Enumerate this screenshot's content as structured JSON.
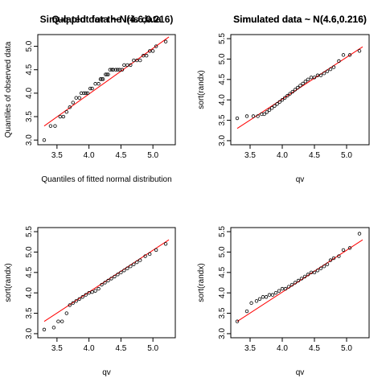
{
  "chart_data": [
    {
      "type": "scatter",
      "title": "Q-q plot for the iris data",
      "xlabel": "Quantiles of fitted normal distribution",
      "ylabel": "Quantiles of observed data",
      "xlim": [
        3.2,
        5.35
      ],
      "ylim": [
        2.9,
        5.25
      ],
      "xticks": [
        "3.5",
        "4.0",
        "4.5",
        "5.0"
      ],
      "yticks": [
        "3.0",
        "3.5",
        "4.0",
        "4.5",
        "5.0"
      ],
      "reference_line": {
        "x": [
          3.3,
          5.25
        ],
        "y": [
          3.3,
          5.2
        ],
        "color": "#ff0000"
      },
      "series": [
        {
          "x": [
            3.3,
            3.4,
            3.47,
            3.55,
            3.6,
            3.65,
            3.7,
            3.75,
            3.8,
            3.85,
            3.88,
            3.92,
            3.95,
            3.98,
            4.02,
            4.05,
            4.1,
            4.15,
            4.18,
            4.2,
            4.22,
            4.26,
            4.28,
            4.3,
            4.33,
            4.36,
            4.38,
            4.42,
            4.45,
            4.48,
            4.52,
            4.55,
            4.6,
            4.65,
            4.7,
            4.75,
            4.8,
            4.85,
            4.9,
            4.95,
            5.0,
            5.05,
            5.2
          ],
          "y": [
            3.0,
            3.3,
            3.3,
            3.5,
            3.5,
            3.6,
            3.7,
            3.8,
            3.9,
            3.9,
            4.0,
            4.0,
            4.0,
            4.0,
            4.1,
            4.1,
            4.2,
            4.2,
            4.3,
            4.3,
            4.3,
            4.4,
            4.4,
            4.4,
            4.5,
            4.5,
            4.5,
            4.5,
            4.5,
            4.5,
            4.5,
            4.6,
            4.6,
            4.6,
            4.7,
            4.7,
            4.7,
            4.8,
            4.8,
            4.9,
            4.9,
            5.0,
            5.1
          ]
        }
      ]
    },
    {
      "type": "scatter",
      "title": "Simulated data ~ N(4.6,0.216)",
      "xlabel": "qv",
      "ylabel": "sort(randx)",
      "xlim": [
        3.2,
        5.35
      ],
      "ylim": [
        2.9,
        5.6
      ],
      "xticks": [
        "3.5",
        "4.0",
        "4.5",
        "5.0"
      ],
      "yticks": [
        "3.0",
        "3.5",
        "4.0",
        "4.5",
        "5.0",
        "5.5"
      ],
      "reference_line": {
        "x": [
          3.3,
          5.25
        ],
        "y": [
          3.3,
          5.3
        ],
        "color": "#ff0000"
      },
      "series": [
        {
          "x": [
            3.3,
            3.45,
            3.55,
            3.62,
            3.68,
            3.72,
            3.76,
            3.8,
            3.84,
            3.88,
            3.92,
            3.96,
            4.0,
            4.04,
            4.08,
            4.12,
            4.16,
            4.2,
            4.24,
            4.28,
            4.32,
            4.36,
            4.4,
            4.45,
            4.5,
            4.55,
            4.6,
            4.65,
            4.7,
            4.75,
            4.8,
            4.88,
            4.95,
            5.05,
            5.2
          ],
          "y": [
            3.55,
            3.6,
            3.6,
            3.6,
            3.65,
            3.65,
            3.7,
            3.75,
            3.8,
            3.85,
            3.9,
            3.95,
            4.0,
            4.05,
            4.1,
            4.15,
            4.2,
            4.25,
            4.3,
            4.35,
            4.4,
            4.45,
            4.5,
            4.55,
            4.55,
            4.6,
            4.6,
            4.65,
            4.7,
            4.75,
            4.8,
            4.95,
            5.1,
            5.1,
            5.2
          ]
        }
      ]
    },
    {
      "type": "scatter",
      "title": "Simulated data ~ N(4.6,0.216)",
      "xlabel": "qv",
      "ylabel": "sort(randx)",
      "xlim": [
        3.2,
        5.35
      ],
      "ylim": [
        2.9,
        5.6
      ],
      "xticks": [
        "3.5",
        "4.0",
        "4.5",
        "5.0"
      ],
      "yticks": [
        "3.0",
        "3.5",
        "4.0",
        "4.5",
        "5.0",
        "5.5"
      ],
      "reference_line": {
        "x": [
          3.3,
          5.25
        ],
        "y": [
          3.3,
          5.3
        ],
        "color": "#ff0000"
      },
      "series": [
        {
          "x": [
            3.3,
            3.45,
            3.52,
            3.58,
            3.65,
            3.7,
            3.75,
            3.8,
            3.85,
            3.9,
            3.95,
            4.0,
            4.05,
            4.1,
            4.15,
            4.2,
            4.25,
            4.3,
            4.35,
            4.4,
            4.45,
            4.5,
            4.55,
            4.6,
            4.65,
            4.7,
            4.75,
            4.8,
            4.88,
            4.95,
            5.05,
            5.2
          ],
          "y": [
            3.1,
            3.15,
            3.3,
            3.3,
            3.5,
            3.7,
            3.75,
            3.8,
            3.85,
            3.9,
            3.95,
            4.0,
            4.02,
            4.05,
            4.1,
            4.2,
            4.25,
            4.3,
            4.35,
            4.4,
            4.45,
            4.5,
            4.55,
            4.6,
            4.65,
            4.7,
            4.75,
            4.8,
            4.9,
            4.95,
            5.05,
            5.2
          ]
        }
      ]
    },
    {
      "type": "scatter",
      "title": "Simulated data ~ N(4.6,0.216)",
      "xlabel": "qv",
      "ylabel": "sort(randx)",
      "xlim": [
        3.2,
        5.35
      ],
      "ylim": [
        2.9,
        5.6
      ],
      "xticks": [
        "3.5",
        "4.0",
        "4.5",
        "5.0"
      ],
      "yticks": [
        "3.0",
        "3.5",
        "4.0",
        "4.5",
        "5.0",
        "5.5"
      ],
      "reference_line": {
        "x": [
          3.3,
          5.25
        ],
        "y": [
          3.3,
          5.3
        ],
        "color": "#ff0000"
      },
      "series": [
        {
          "x": [
            3.3,
            3.45,
            3.52,
            3.6,
            3.65,
            3.7,
            3.75,
            3.8,
            3.85,
            3.9,
            3.95,
            4.0,
            4.05,
            4.1,
            4.15,
            4.2,
            4.25,
            4.3,
            4.35,
            4.4,
            4.45,
            4.5,
            4.55,
            4.6,
            4.65,
            4.7,
            4.75,
            4.8,
            4.88,
            4.95,
            5.05,
            5.2
          ],
          "y": [
            3.3,
            3.55,
            3.75,
            3.8,
            3.85,
            3.9,
            3.9,
            3.95,
            3.95,
            4.0,
            4.05,
            4.1,
            4.1,
            4.15,
            4.2,
            4.25,
            4.3,
            4.35,
            4.4,
            4.45,
            4.5,
            4.5,
            4.55,
            4.6,
            4.65,
            4.7,
            4.8,
            4.85,
            4.9,
            5.05,
            5.1,
            5.45
          ]
        }
      ]
    }
  ]
}
